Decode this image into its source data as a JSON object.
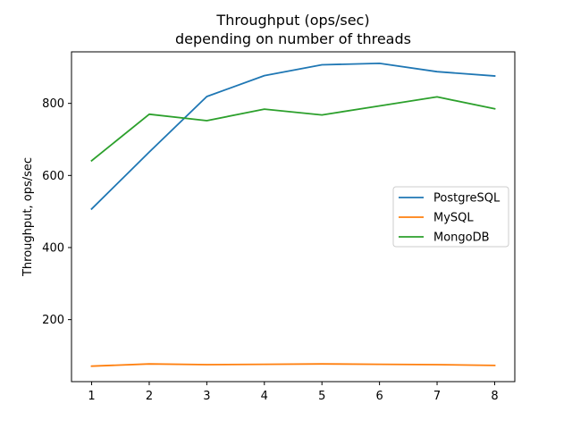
{
  "chart_data": {
    "type": "line",
    "title": "Throughput (ops/sec)",
    "subtitle": "depending on number of threads",
    "xlabel": "",
    "ylabel": "Throughput, ops/sec",
    "x": [
      1,
      2,
      3,
      4,
      5,
      6,
      7,
      8
    ],
    "xlim": [
      0.65,
      8.35
    ],
    "ylim": [
      28,
      943
    ],
    "yticks": [
      200,
      400,
      600,
      800
    ],
    "grid": false,
    "legend_position": "center-right",
    "series": [
      {
        "name": "PostgreSQL",
        "color": "#1f77b4",
        "values": [
          507,
          665,
          819,
          877,
          907,
          911,
          888,
          876
        ]
      },
      {
        "name": "MySQL",
        "color": "#ff7f0e",
        "values": [
          71,
          77,
          75,
          76,
          77,
          76,
          75,
          73
        ]
      },
      {
        "name": "MongoDB",
        "color": "#2ca02c",
        "values": [
          641,
          770,
          752,
          784,
          768,
          793,
          818,
          785
        ]
      }
    ]
  }
}
